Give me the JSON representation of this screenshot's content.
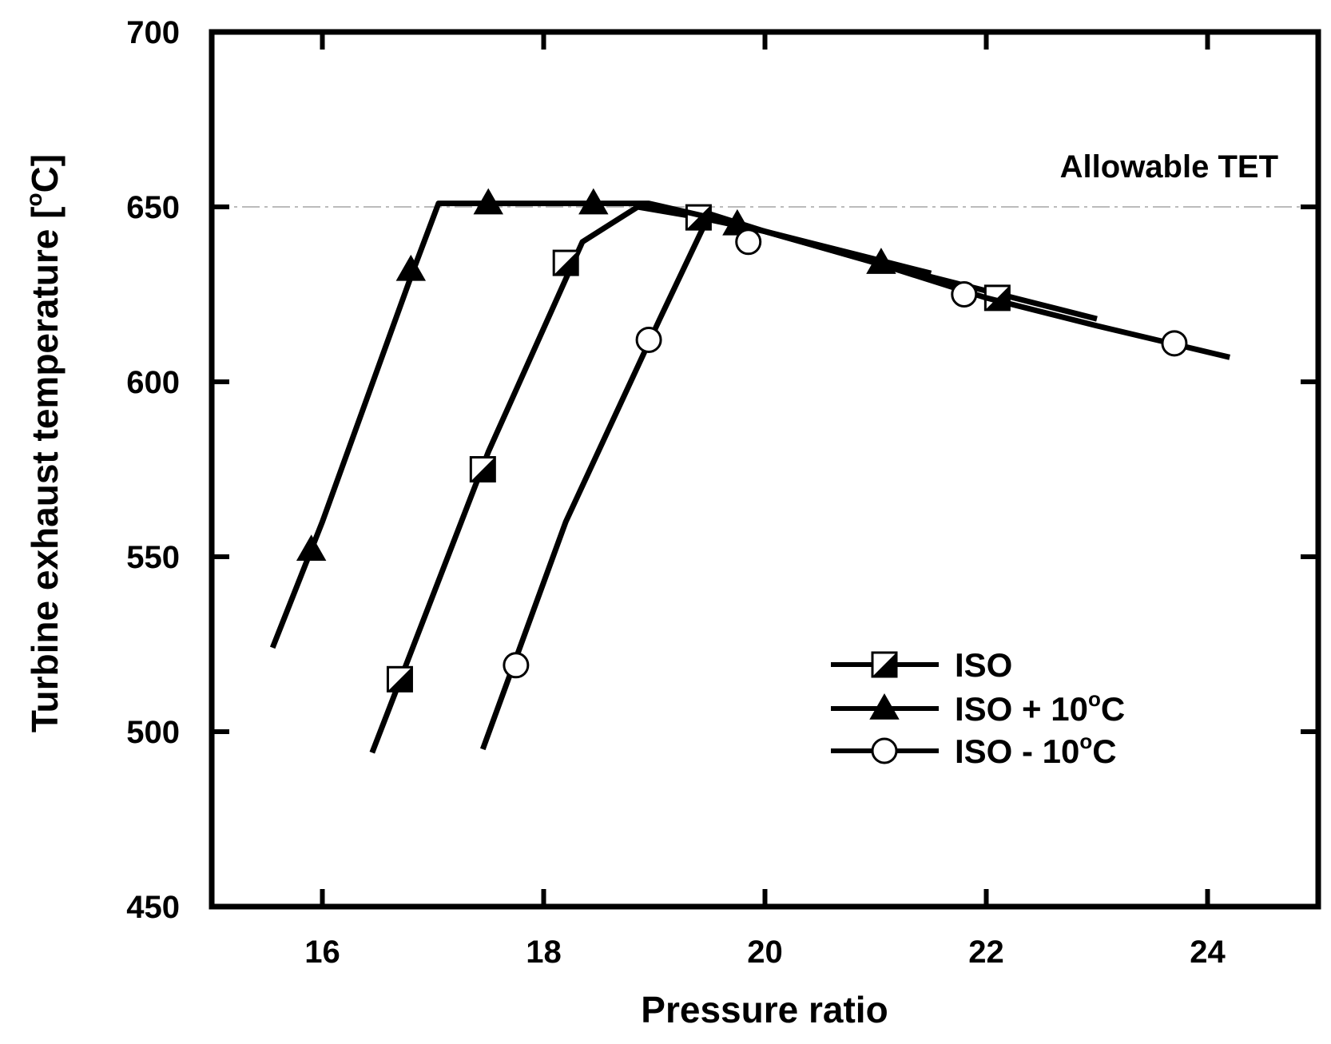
{
  "chart_data": {
    "type": "line",
    "title": "",
    "xlabel": "Pressure ratio",
    "ylabel_prefix": "Turbine exhaust temperature [",
    "ylabel_unit": "C",
    "ylabel_suffix": "]",
    "ylabel_degree": "o",
    "xlim": [
      15,
      25
    ],
    "ylim": [
      450,
      700
    ],
    "xticks": [
      16,
      18,
      20,
      22,
      24
    ],
    "yticks": [
      450,
      500,
      550,
      600,
      650,
      700
    ],
    "xtick_labels": [
      "16",
      "18",
      "20",
      "22",
      "24"
    ],
    "ytick_labels": [
      "450",
      "500",
      "550",
      "600",
      "650",
      "700"
    ],
    "reference_line": {
      "y": 650,
      "label": "Allowable TET",
      "color": "#bbbbbb"
    },
    "legend": {
      "placement": "lower-right"
    },
    "series": [
      {
        "name": "ISO",
        "legend_label": "ISO",
        "marker": "half-square",
        "line": [
          [
            16.45,
            494
          ],
          [
            17.5,
            580
          ],
          [
            18.35,
            640
          ],
          [
            18.85,
            650
          ],
          [
            19.4,
            647
          ],
          [
            20,
            643
          ],
          [
            21,
            634
          ],
          [
            22,
            626
          ],
          [
            22.5,
            622
          ],
          [
            23,
            618
          ]
        ],
        "markers": [
          [
            16.7,
            515
          ],
          [
            17.45,
            575
          ],
          [
            18.2,
            634
          ],
          [
            19.4,
            647
          ],
          [
            22.1,
            624
          ]
        ]
      },
      {
        "name": "ISO + 10C",
        "legend_label": "ISO + 10",
        "legend_unit": "C",
        "legend_degree": "o",
        "marker": "triangle",
        "line": [
          [
            15.55,
            524
          ],
          [
            16,
            560
          ],
          [
            16.8,
            630
          ],
          [
            17.05,
            651
          ],
          [
            18.95,
            651
          ],
          [
            19.5,
            647
          ],
          [
            20,
            643
          ],
          [
            21,
            635
          ],
          [
            21.5,
            631
          ]
        ],
        "markers": [
          [
            15.9,
            552
          ],
          [
            16.8,
            632
          ],
          [
            17.5,
            651
          ],
          [
            18.45,
            651
          ],
          [
            19.75,
            645
          ],
          [
            21.05,
            634
          ]
        ]
      },
      {
        "name": "ISO - 10C",
        "legend_label": "ISO - 10",
        "legend_unit": "C",
        "legend_degree": "o",
        "marker": "circle",
        "line": [
          [
            17.45,
            495
          ],
          [
            18.2,
            560
          ],
          [
            19.05,
            618
          ],
          [
            19.5,
            648
          ],
          [
            20,
            643
          ],
          [
            21,
            634
          ],
          [
            22,
            624
          ],
          [
            23,
            616
          ],
          [
            24.2,
            607
          ]
        ],
        "markers": [
          [
            17.75,
            519
          ],
          [
            18.95,
            612
          ],
          [
            19.85,
            640
          ],
          [
            21.8,
            625
          ],
          [
            23.7,
            611
          ]
        ]
      }
    ]
  }
}
